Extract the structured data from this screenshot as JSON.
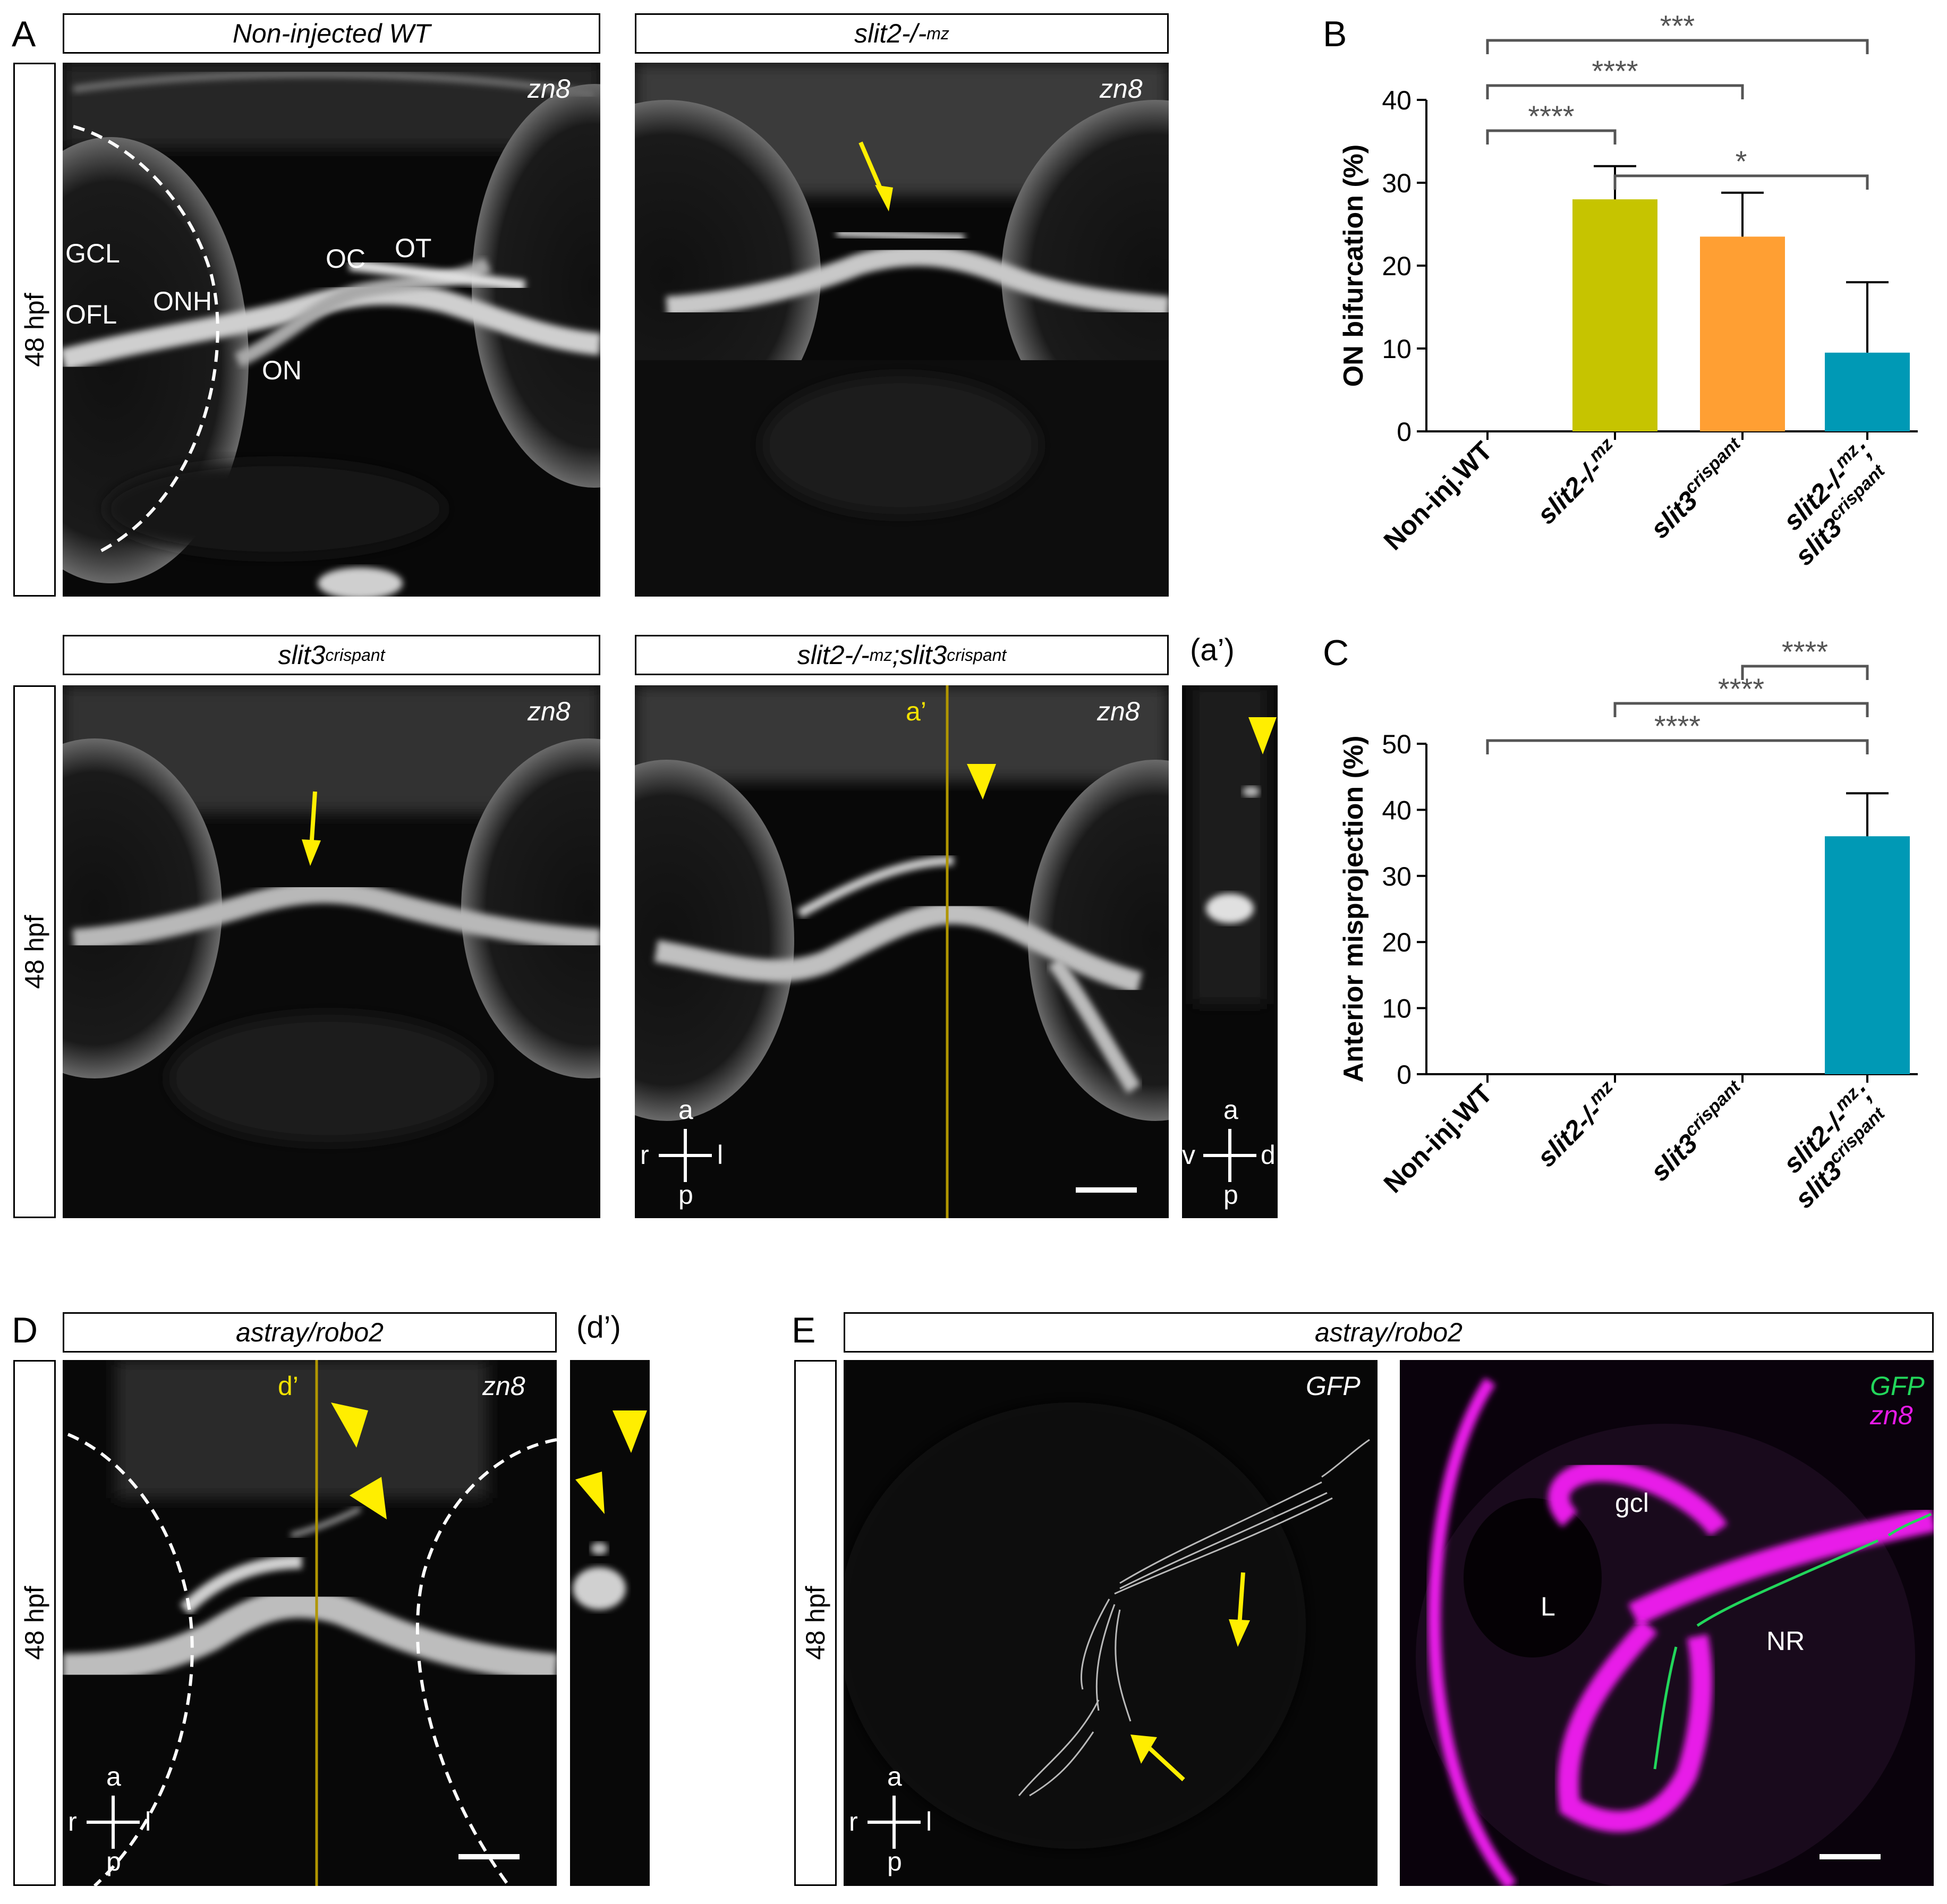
{
  "panel_letters": {
    "A": "A",
    "B": "B",
    "C": "C",
    "D": "D",
    "E": "E"
  },
  "headers": {
    "wt": "Non-injected WT",
    "slit2": "slit2-/-",
    "slit2_sup": "mz",
    "slit3": "slit3",
    "slit3_sup": "crispant",
    "double_a": "slit2-/-",
    "double_a_sup": "mz",
    "double_b": ";slit3",
    "double_b_sup": "crispant",
    "astray_d": "astray/robo2",
    "astray_e": "astray/robo2"
  },
  "side_labels": {
    "a": "48 hpf",
    "b": "48 hpf",
    "d": "48 hpf",
    "e": "48 hpf"
  },
  "sub_labels": {
    "a_prime": "(a’)",
    "d_prime": "(d’)"
  },
  "stain": {
    "zn8": "zn8",
    "gfp": "GFP"
  },
  "anatomy": {
    "gcl_upper": "GCL",
    "ofl": "OFL",
    "onh": "ONH",
    "oc": "OC",
    "ot": "OT",
    "on": "ON",
    "gcl_lower": "gcl",
    "lens": "L",
    "nr": "NR"
  },
  "line_labels": {
    "a_prime": "a’",
    "d_prime": "d’"
  },
  "axes": {
    "a": "a",
    "p": "p",
    "r": "r",
    "l": "l",
    "v": "v",
    "d": "d"
  },
  "colors": {
    "wt": "#c6c400",
    "slit2": "#c6c400",
    "slit3": "#ff9f33",
    "double": "#0099b5",
    "arrow": "#ffee00",
    "magenta": "#e81ae8",
    "green": "#22d65b"
  },
  "chart_data": [
    {
      "id": "B",
      "type": "bar",
      "categories": [
        "Non-inj.WT",
        "slit2-/-mz",
        "slit3crispant",
        "slit2-/-mz;slit3crispant"
      ],
      "category_parts": [
        {
          "base": "Non-inj.WT",
          "sup": ""
        },
        {
          "base": "slit2-/-",
          "sup": "mz"
        },
        {
          "base": "slit3",
          "sup": "crispant"
        },
        {
          "base": "slit2-/-",
          "sup": "mz",
          "base2": "slit3",
          "sup2": "crispant"
        }
      ],
      "values": [
        0,
        28,
        23.5,
        9.5
      ],
      "errors": [
        0,
        4,
        5.3,
        8.5
      ],
      "ylabel": "ON bifurcation (%)",
      "ylim": [
        0,
        40
      ],
      "yticks": [
        0,
        10,
        20,
        30,
        40
      ],
      "significance": [
        {
          "from": 0,
          "to": 3,
          "label": "***"
        },
        {
          "from": 0,
          "to": 2,
          "label": "****"
        },
        {
          "from": 0,
          "to": 1,
          "label": "****"
        },
        {
          "from": 1,
          "to": 3,
          "label": "*"
        }
      ]
    },
    {
      "id": "C",
      "type": "bar",
      "categories": [
        "Non-inj.WT",
        "slit2-/-mz",
        "slit3crispant",
        "slit2-/-mz;slit3crispant"
      ],
      "category_parts": [
        {
          "base": "Non-inj.WT",
          "sup": ""
        },
        {
          "base": "slit2-/-",
          "sup": "mz"
        },
        {
          "base": "slit3",
          "sup": "crispant"
        },
        {
          "base": "slit2-/-",
          "sup": "mz",
          "base2": "slit3",
          "sup2": "crispant"
        }
      ],
      "values": [
        0,
        0,
        0,
        36
      ],
      "errors": [
        0,
        0,
        0,
        6.5
      ],
      "ylabel": "Anterior misprojection (%)",
      "ylim": [
        0,
        50
      ],
      "yticks": [
        0,
        10,
        20,
        30,
        40,
        50
      ],
      "significance": [
        {
          "from": 2,
          "to": 3,
          "label": "****"
        },
        {
          "from": 1,
          "to": 3,
          "label": "****"
        },
        {
          "from": 0,
          "to": 3,
          "label": "****"
        }
      ]
    }
  ]
}
